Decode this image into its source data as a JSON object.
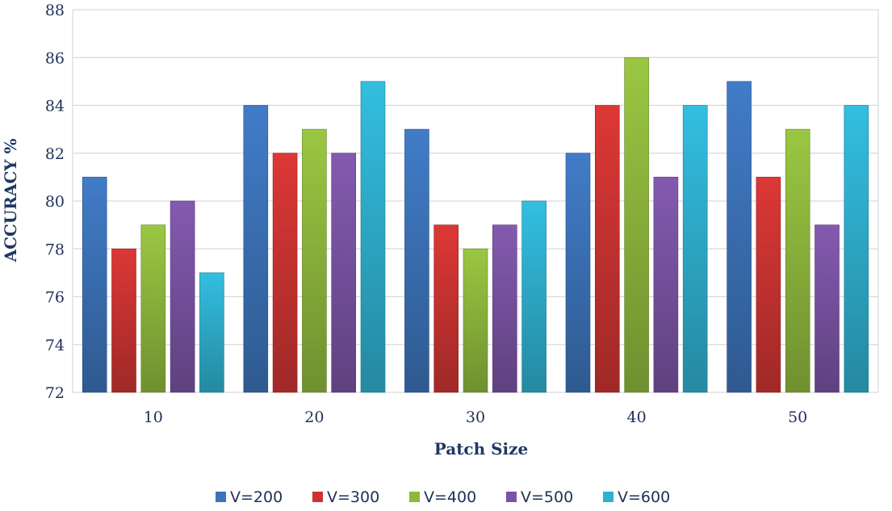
{
  "chart_data": {
    "type": "bar",
    "title": "",
    "xlabel": "Patch Size",
    "ylabel": "ACCURACY %",
    "categories": [
      "10",
      "20",
      "30",
      "40",
      "50"
    ],
    "ylim": [
      72,
      88
    ],
    "yticks": [
      "72",
      "74",
      "76",
      "78",
      "80",
      "82",
      "84",
      "86",
      "88"
    ],
    "grid": true,
    "legend_position": "bottom",
    "series": [
      {
        "name": "V=200",
        "values": [
          81,
          84,
          83,
          82,
          85
        ],
        "color": "#3c73b9"
      },
      {
        "name": "V=300",
        "values": [
          78,
          82,
          79,
          84,
          81
        ],
        "color": "#cc3432"
      },
      {
        "name": "V=400",
        "values": [
          79,
          83,
          78,
          86,
          83
        ],
        "color": "#8fb83d"
      },
      {
        "name": "V=500",
        "values": [
          80,
          82,
          79,
          81,
          79
        ],
        "color": "#7a53a3"
      },
      {
        "name": "V=600",
        "values": [
          77,
          85,
          80,
          84,
          84
        ],
        "color": "#2fb0cf"
      }
    ]
  }
}
